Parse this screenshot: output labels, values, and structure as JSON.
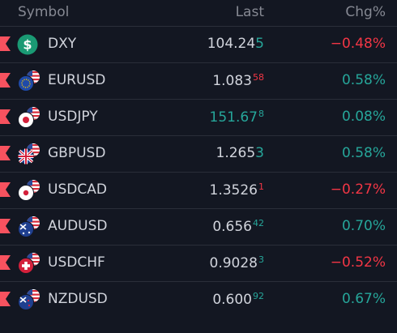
{
  "header": {
    "symbol": "Symbol",
    "last": "Last",
    "chg": "Chg%"
  },
  "colors": {
    "bg": "#131722",
    "up": "#26a69a",
    "down": "#f23645",
    "flag": "#f7525f"
  },
  "rows": [
    {
      "symbol": "DXY",
      "last_main": "104.24",
      "last_tick": "5",
      "tick_dir": "up",
      "tick_small": false,
      "last_dir": "",
      "chg": "−0.48%",
      "chg_dir": "dn",
      "icon": "dollar-icon"
    },
    {
      "symbol": "EURUSD",
      "last_main": "1.083",
      "last_tick": "58",
      "tick_dir": "dn",
      "tick_small": true,
      "last_dir": "",
      "chg": "0.58%",
      "chg_dir": "up",
      "icon": "eu-us-flags-icon"
    },
    {
      "symbol": "USDJPY",
      "last_main": "151.67",
      "last_tick": "8",
      "tick_dir": "up",
      "tick_small": true,
      "last_dir": "up",
      "chg": "0.08%",
      "chg_dir": "up",
      "icon": "us-jp-flags-icon"
    },
    {
      "symbol": "GBPUSD",
      "last_main": "1.265",
      "last_tick": "3",
      "tick_dir": "up",
      "tick_small": false,
      "last_dir": "",
      "chg": "0.58%",
      "chg_dir": "up",
      "icon": "gb-us-flags-icon"
    },
    {
      "symbol": "USDCAD",
      "last_main": "1.3526",
      "last_tick": "1",
      "tick_dir": "dn",
      "tick_small": true,
      "last_dir": "",
      "chg": "−0.27%",
      "chg_dir": "dn",
      "icon": "us-ca-flags-icon"
    },
    {
      "symbol": "AUDUSD",
      "last_main": "0.656",
      "last_tick": "42",
      "tick_dir": "up",
      "tick_small": true,
      "last_dir": "",
      "chg": "0.70%",
      "chg_dir": "up",
      "icon": "au-us-flags-icon"
    },
    {
      "symbol": "USDCHF",
      "last_main": "0.9028",
      "last_tick": "3",
      "tick_dir": "up",
      "tick_small": true,
      "last_dir": "",
      "chg": "−0.52%",
      "chg_dir": "dn",
      "icon": "us-ch-flags-icon"
    },
    {
      "symbol": "NZDUSD",
      "last_main": "0.600",
      "last_tick": "92",
      "tick_dir": "up",
      "tick_small": true,
      "last_dir": "",
      "chg": "0.67%",
      "chg_dir": "up",
      "icon": "nz-us-flags-icon"
    }
  ]
}
